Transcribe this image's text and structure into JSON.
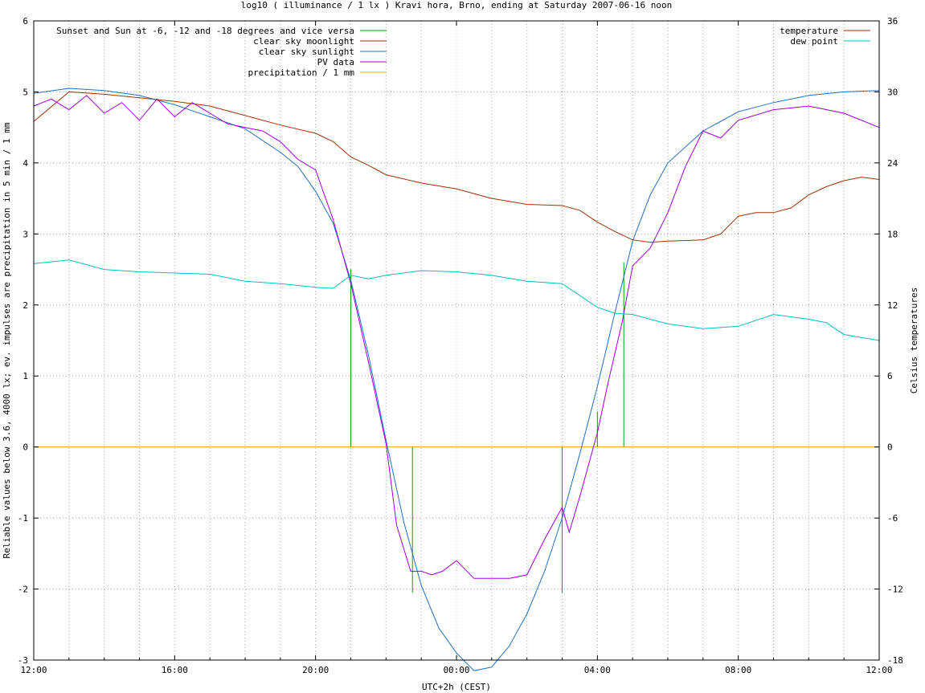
{
  "chart_data": {
    "type": "line",
    "title": "log10 ( illuminance / 1 lx ) Kravi hora, Brno, ending at Saturday 2007-06-16 noon",
    "xlabel": "UTC+2h (CEST)",
    "ylabel": "Reliable values below 3.6, 4000 lx; ev. impulses are precipitation in 5 min / 1 mm",
    "y2label": "Celsius temperatures",
    "x_unit": "hours since 2007-06-15 12:00",
    "xlim": [
      0,
      24
    ],
    "ylim": [
      -3,
      6
    ],
    "y2lim": [
      -18,
      36
    ],
    "grid": true,
    "x_ticks": [
      {
        "v": 0,
        "label": "12:00"
      },
      {
        "v": 4,
        "label": "16:00"
      },
      {
        "v": 8,
        "label": "20:00"
      },
      {
        "v": 12,
        "label": "00:00"
      },
      {
        "v": 16,
        "label": "04:00"
      },
      {
        "v": 20,
        "label": "08:00"
      },
      {
        "v": 24,
        "label": "12:00"
      }
    ],
    "y_ticks": [
      {
        "v": -3,
        "label": "-3"
      },
      {
        "v": -2,
        "label": "-2"
      },
      {
        "v": -1,
        "label": "-1"
      },
      {
        "v": 0,
        "label": "0"
      },
      {
        "v": 1,
        "label": "1"
      },
      {
        "v": 2,
        "label": "2"
      },
      {
        "v": 3,
        "label": "3"
      },
      {
        "v": 4,
        "label": "4"
      },
      {
        "v": 5,
        "label": "5"
      },
      {
        "v": 6,
        "label": "6"
      }
    ],
    "y2_ticks": [
      {
        "v": -18,
        "label": "-18"
      },
      {
        "v": -12,
        "label": "-12"
      },
      {
        "v": -6,
        "label": "-6"
      },
      {
        "v": 0,
        "label": "0"
      },
      {
        "v": 6,
        "label": "6"
      },
      {
        "v": 12,
        "label": "12"
      },
      {
        "v": 18,
        "label": "18"
      },
      {
        "v": 24,
        "label": "24"
      },
      {
        "v": 30,
        "label": "30"
      },
      {
        "v": 36,
        "label": "36"
      }
    ],
    "legend_left": [
      {
        "name": "Sunset and Sun at -6, -12 and -18 degrees and vice versa",
        "color": "#00a000"
      },
      {
        "name": "clear sky moonlight",
        "color": "#a02000"
      },
      {
        "name": "clear sky sunlight",
        "color": "#2070c0"
      },
      {
        "name": "PV data",
        "color": "#a000e0"
      },
      {
        "name": "precipitation / 1 mm",
        "color": "#e0b000"
      }
    ],
    "legend_right": [
      {
        "name": "temperature",
        "color": "#a03000"
      },
      {
        "name": "dew point",
        "color": "#00c0c0"
      }
    ],
    "markers": {
      "name": "Sunset and Sun at -6, -12 and -18 degrees and vice versa",
      "color": "#00a000",
      "impulses": [
        {
          "x": 9.0,
          "y": 2.5
        },
        {
          "x": 9.75,
          "y": 0.0
        },
        {
          "x": 10.75,
          "y": -2.05
        },
        {
          "x": 15.0,
          "y": -2.05
        },
        {
          "x": 16.0,
          "y": 0.5
        },
        {
          "x": 16.75,
          "y": 2.6
        }
      ]
    },
    "precipitation": {
      "name": "precipitation / 1 mm",
      "color": "#e0b000",
      "y": 0
    },
    "series": [
      {
        "name": "clear sky sunlight",
        "color": "#2070c0",
        "axis": "y",
        "x": [
          0,
          1,
          2,
          3,
          4,
          5,
          6,
          7,
          7.5,
          8,
          8.5,
          9,
          9.5,
          10,
          10.5,
          11,
          11.5,
          12,
          12.5,
          13,
          13.5,
          14,
          14.5,
          15,
          15.5,
          16,
          16.5,
          17,
          17.5,
          18,
          19,
          20,
          21,
          22,
          23,
          24
        ],
        "values": [
          4.98,
          5.05,
          5.02,
          4.95,
          4.82,
          4.65,
          4.48,
          4.15,
          3.95,
          3.6,
          3.15,
          2.35,
          1.3,
          0.1,
          -1.05,
          -1.95,
          -2.55,
          -2.9,
          -3.15,
          -3.1,
          -2.8,
          -2.35,
          -1.75,
          -1.0,
          -0.1,
          0.85,
          1.9,
          2.9,
          3.55,
          4.0,
          4.45,
          4.72,
          4.85,
          4.95,
          5.0,
          5.02
        ]
      },
      {
        "name": "PV data",
        "color": "#a000e0",
        "axis": "y",
        "x": [
          0,
          0.5,
          1,
          1.5,
          2,
          2.5,
          3,
          3.5,
          4,
          4.5,
          5,
          5.5,
          6,
          6.5,
          7,
          7.5,
          8,
          8.5,
          9,
          9.5,
          10,
          10.3,
          10.7,
          11,
          11.3,
          11.6,
          12,
          12.5,
          13,
          13.5,
          14,
          14.5,
          15,
          15.2,
          15.5,
          16,
          16.3,
          16.7,
          17,
          17.5,
          18,
          18.5,
          19,
          19.5,
          20,
          21,
          22,
          23,
          24
        ],
        "values": [
          4.8,
          4.9,
          4.75,
          4.95,
          4.7,
          4.85,
          4.6,
          4.9,
          4.65,
          4.85,
          4.7,
          4.55,
          4.5,
          4.45,
          4.3,
          4.05,
          3.9,
          3.2,
          2.3,
          1.2,
          0.05,
          -1.1,
          -1.75,
          -1.75,
          -1.8,
          -1.75,
          -1.6,
          -1.85,
          -1.85,
          -1.85,
          -1.8,
          -1.3,
          -0.85,
          -1.2,
          -0.7,
          0.2,
          0.9,
          1.75,
          2.55,
          2.8,
          3.3,
          3.95,
          4.45,
          4.35,
          4.6,
          4.75,
          4.8,
          4.7,
          4.5
        ]
      },
      {
        "name": "temperature",
        "color": "#a03000",
        "axis": "y2",
        "x": [
          0,
          1,
          2,
          3,
          4,
          5,
          6,
          7,
          8,
          8.5,
          9,
          9.5,
          10,
          11,
          12,
          13,
          14,
          15,
          15.5,
          16,
          16.5,
          17,
          17.5,
          18,
          19,
          19.5,
          20,
          20.5,
          21,
          21.5,
          22,
          22.5,
          23,
          23.5,
          24
        ],
        "values": [
          27.5,
          30,
          29.8,
          29.5,
          29.2,
          28.8,
          28,
          27.2,
          26.5,
          25.8,
          24.5,
          23.8,
          23,
          22.3,
          21.8,
          21,
          20.5,
          20.4,
          20,
          19,
          18.2,
          17.5,
          17.3,
          17.4,
          17.5,
          18,
          19.5,
          19.8,
          19.8,
          20.2,
          21.3,
          22,
          22.5,
          22.8,
          22.6
        ]
      },
      {
        "name": "dew point",
        "color": "#00c0c0",
        "axis": "y2",
        "x": [
          0,
          1,
          2,
          3,
          4,
          5,
          6,
          7,
          8,
          8.5,
          9,
          9.5,
          10,
          11,
          12,
          13,
          14,
          15,
          16,
          16.5,
          17,
          17.5,
          18,
          19,
          20,
          21,
          22,
          22.5,
          23,
          24
        ],
        "values": [
          15.5,
          15.8,
          15,
          14.8,
          14.7,
          14.6,
          14,
          13.8,
          13.5,
          13.4,
          14.5,
          14.2,
          14.5,
          14.9,
          14.8,
          14.5,
          14,
          13.8,
          11.8,
          11.3,
          11.2,
          10.8,
          10.4,
          10,
          10.2,
          11.2,
          10.8,
          10.5,
          9.5,
          9.0
        ]
      }
    ]
  }
}
